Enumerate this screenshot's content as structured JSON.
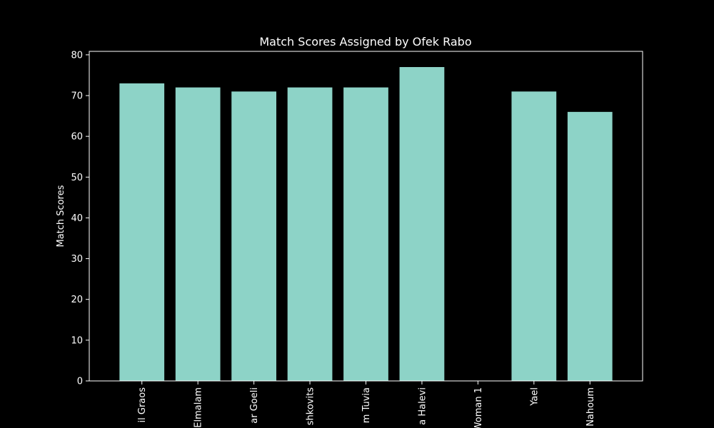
{
  "chart_data": {
    "type": "bar",
    "title": "Match Scores Assigned by Ofek Rabo",
    "xlabel": "",
    "ylabel": "Match Scores",
    "categories": [
      "il Graos",
      "Elmalam",
      "ar Goeli",
      "shkovits",
      "m Tuvia",
      "a Halevi",
      "Woman 1",
      "Yael",
      "Nahoum"
    ],
    "values": [
      73,
      72,
      71,
      72,
      72,
      77,
      0,
      71,
      66
    ],
    "ylim": [
      0,
      80
    ],
    "yticks": [
      0,
      10,
      20,
      30,
      40,
      50,
      60,
      70,
      80
    ],
    "grid": false,
    "legend": "none"
  },
  "colors": {
    "background": "#000000",
    "bar": "#8dd3c7",
    "axis": "#ffffff",
    "text": "#ffffff"
  }
}
